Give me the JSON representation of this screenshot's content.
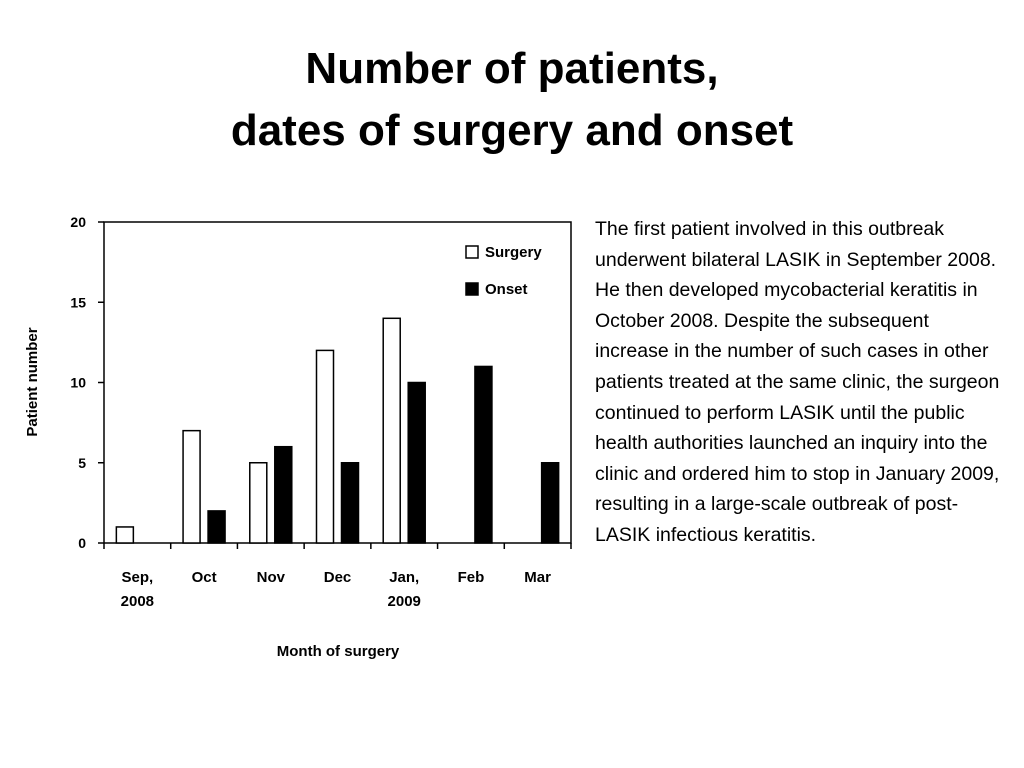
{
  "slide": {
    "title_line1": "Number of patients,",
    "title_line2": "dates of surgery and onset",
    "body": "The first patient involved in this outbreak underwent bilateral LASIK in September 2008. He then developed mycobacterial keratitis in October 2008. Despite the subsequent increase in the number of such cases in other patients treated at the same clinic, the surgeon continued to perform LASIK until the public health authorities launched an inquiry into the clinic and ordered him to stop in January 2009, resulting in a large-scale outbreak of post-LASIK infectious keratitis."
  },
  "chart_data": {
    "type": "bar",
    "title": "",
    "xlabel": "Month of surgery",
    "ylabel": "Patient number",
    "ylim": [
      0,
      20
    ],
    "yticks": [
      0,
      5,
      10,
      15,
      20
    ],
    "grid": false,
    "legend_position": "top-right",
    "categories": [
      [
        "Sep,",
        "2008"
      ],
      [
        "Oct"
      ],
      [
        "Nov"
      ],
      [
        "Dec"
      ],
      [
        "Jan,",
        "2009"
      ],
      [
        "Feb"
      ],
      [
        "Mar"
      ]
    ],
    "series": [
      {
        "name": "Surgery",
        "color": "#ffffff",
        "stroke": "#000000",
        "values": [
          1,
          7,
          5,
          12,
          14,
          0,
          0
        ]
      },
      {
        "name": "Onset",
        "color": "#000000",
        "stroke": "#000000",
        "values": [
          0,
          2,
          6,
          5,
          10,
          11,
          5
        ]
      }
    ]
  }
}
